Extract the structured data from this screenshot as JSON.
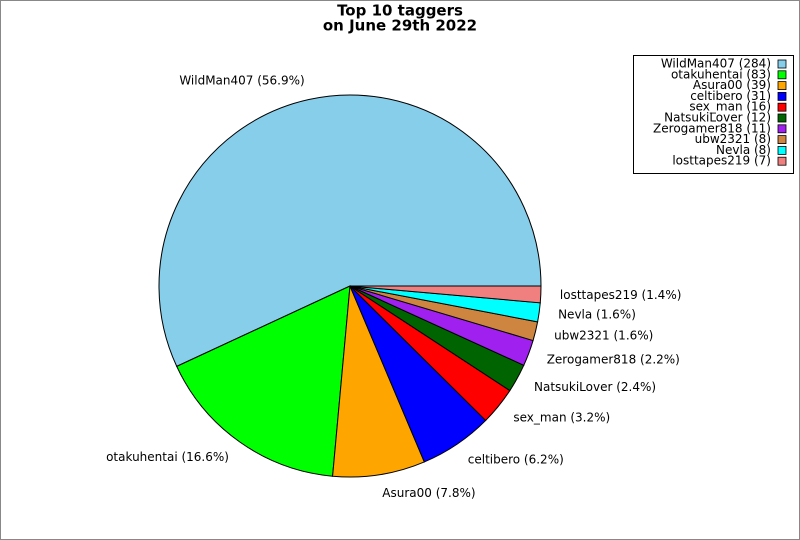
{
  "chart_data": {
    "type": "pie",
    "title": "Top 10 taggers",
    "subtitle": "on June 29th 2022",
    "categories": [
      "WildMan407 (284)",
      "otakuhentai (83)",
      "Asura00 (39)",
      "celtibero (31)",
      "sex_man (16)",
      "NatsukiLover (12)",
      "Zerogamer818 (11)",
      "ubw2321 (8)",
      "Nevla (8)",
      "losttapes219 (7)"
    ],
    "values": [
      284,
      83,
      39,
      31,
      16,
      12,
      11,
      8,
      8,
      7
    ],
    "slice_labels": [
      "WildMan407 (56.9%)",
      "otakuhentai (16.6%)",
      "Asura00 (7.8%)",
      "celtibero (6.2%)",
      "sex_man (3.2%)",
      "NatsukiLover (2.4%)",
      "Zerogamer818 (2.2%)",
      "ubw2321 (1.6%)",
      "Nevla (1.6%)",
      "losttapes219 (1.4%)"
    ],
    "colors": [
      "#87ceeb",
      "#00ff00",
      "#ffa500",
      "#0000ff",
      "#ff0000",
      "#006400",
      "#a020f0",
      "#cd853f",
      "#00ffff",
      "#f08080"
    ],
    "legend": "upper right"
  }
}
